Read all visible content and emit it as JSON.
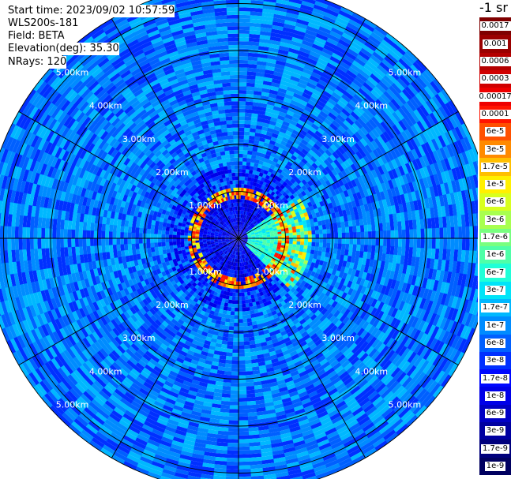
{
  "header": {
    "start_time": "Start time: 2023/09/02 10:57:59",
    "instrument": "WLS200s-181",
    "field": "Field: BETA",
    "elevation": "Elevation(deg): 35.30",
    "nrays": "NRays: 120"
  },
  "colorbar": {
    "title": "-1 sr",
    "labels": [
      "0.0017",
      "0.001",
      "0.0006",
      "0.0003",
      "0.00017",
      "0.0001",
      "6e-5",
      "3e-5",
      "1.7e-5",
      "1e-5",
      "6e-6",
      "3e-6",
      "1.7e-6",
      "1e-6",
      "6e-7",
      "3e-7",
      "1.7e-7",
      "1e-7",
      "6e-8",
      "3e-8",
      "1.7e-8",
      "1e-8",
      "6e-9",
      "3e-9",
      "1.7e-9",
      "1e-9"
    ],
    "colors": [
      "#7f0000",
      "#9a0000",
      "#b40000",
      "#d00000",
      "#ee0000",
      "#ff1400",
      "#ff5000",
      "#ff8a00",
      "#ffbf00",
      "#fff000",
      "#d8ff1f",
      "#a8ff4f",
      "#78ff7f",
      "#4fffa8",
      "#1fffd8",
      "#00e4f8",
      "#00b8ff",
      "#008cff",
      "#0060ff",
      "#0030ff",
      "#0008ff",
      "#0000e8",
      "#0000c4",
      "#0000a0",
      "#00007c",
      "#000060"
    ]
  },
  "chart_data": {
    "type": "heatmap",
    "projection": "polar PPI (plan position indicator)",
    "field": "BETA",
    "nrays": 120,
    "range_rings_km": [
      1,
      2,
      3,
      4,
      5
    ],
    "ring_labels": [
      "1.00km",
      "2.00km",
      "3.00km",
      "4.00km",
      "5.00km"
    ],
    "max_range_km": 5.4,
    "radial_lines_every_deg": 30,
    "description_of_values": {
      "background_clear_air": "1e-8 to 1.7e-7 (blue / light-blue speckle)",
      "near_range_0_to_1km": "3e-9 to 3e-8 (darker blue)",
      "ring_near_1km": "1e-5 to 1e-4 (red/orange/yellow)",
      "east_plume_1_to_1.6km_az_60_to_130": "1e-6 to 3e-5 (cyan/green/yellow/red)"
    }
  }
}
